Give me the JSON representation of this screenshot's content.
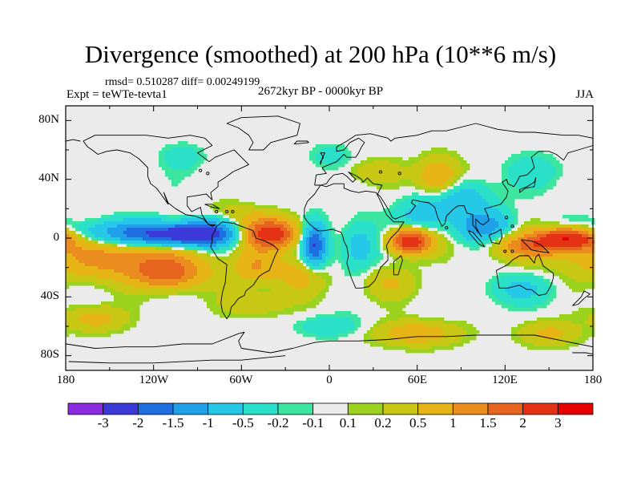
{
  "title": "Divergence (smoothed) at 200 hPa (10**6 m/s)",
  "stats": "rmsd= 0.510287 diff= 0.00249199",
  "experiment": "Expt = teWTe-tevta1",
  "period": "2672kyr BP - 0000kyr BP",
  "season": "JJA",
  "axes": {
    "lat_labels": [
      "80N",
      "40N",
      "0",
      "40S",
      "80S"
    ],
    "lat_values": [
      80,
      40,
      0,
      -40,
      -80
    ],
    "lon_labels": [
      "180",
      "120W",
      "60W",
      "0",
      "60E",
      "120E",
      "180"
    ],
    "lon_values": [
      -180,
      -120,
      -60,
      0,
      60,
      120,
      180
    ],
    "lat_range": [
      -90,
      90
    ],
    "lon_range": [
      -180,
      180
    ]
  },
  "colorbar": {
    "labels": [
      "-3",
      "-2",
      "-1.5",
      "-1",
      "-0.5",
      "-0.2",
      "-0.1",
      "0.1",
      "0.2",
      "0.5",
      "1",
      "1.5",
      "2",
      "3"
    ],
    "colors": [
      "#8a2be2",
      "#3b3ad9",
      "#1f6fe0",
      "#1fa0e8",
      "#25c8e6",
      "#2be0c8",
      "#3ce6a0",
      "#ebebeb",
      "#9ad21e",
      "#c8c814",
      "#e6b414",
      "#eb8c1e",
      "#e6641e",
      "#e33214",
      "#e60000"
    ]
  },
  "field_anomalies": [
    {
      "lon": -100,
      "lat": 2,
      "value": -2.6,
      "sx": 22,
      "sy": 6
    },
    {
      "lon": -150,
      "lat": 3,
      "value": -1.2,
      "sx": 30,
      "sy": 6
    },
    {
      "lon": -75,
      "lat": 8,
      "value": -0.8,
      "sx": 12,
      "sy": 8
    },
    {
      "lon": -40,
      "lat": 3,
      "value": 2.4,
      "sx": 14,
      "sy": 7
    },
    {
      "lon": -70,
      "lat": 15,
      "value": 0.7,
      "sx": 14,
      "sy": 6
    },
    {
      "lon": -140,
      "lat": -14,
      "value": 1.3,
      "sx": 38,
      "sy": 10
    },
    {
      "lon": -110,
      "lat": -25,
      "value": 1.4,
      "sx": 16,
      "sy": 7
    },
    {
      "lon": -10,
      "lat": -5,
      "value": -2.0,
      "sx": 6,
      "sy": 10
    },
    {
      "lon": 20,
      "lat": -5,
      "value": -0.9,
      "sx": 9,
      "sy": 12
    },
    {
      "lon": 55,
      "lat": -2,
      "value": 2.8,
      "sx": 10,
      "sy": 6
    },
    {
      "lon": 65,
      "lat": 15,
      "value": -0.8,
      "sx": 12,
      "sy": 10
    },
    {
      "lon": 75,
      "lat": 40,
      "value": 1.1,
      "sx": 10,
      "sy": 10
    },
    {
      "lon": 90,
      "lat": 28,
      "value": -0.9,
      "sx": 14,
      "sy": 8
    },
    {
      "lon": 105,
      "lat": 8,
      "value": -1.2,
      "sx": 14,
      "sy": 8
    },
    {
      "lon": 165,
      "lat": 0,
      "value": 2.8,
      "sx": 14,
      "sy": 5
    },
    {
      "lon": 140,
      "lat": -5,
      "value": 1.4,
      "sx": 22,
      "sy": 6
    },
    {
      "lon": -20,
      "lat": -25,
      "value": 0.7,
      "sx": 12,
      "sy": 9
    },
    {
      "lon": -50,
      "lat": -20,
      "value": 0.9,
      "sx": 10,
      "sy": 8
    },
    {
      "lon": 40,
      "lat": -30,
      "value": 0.5,
      "sx": 14,
      "sy": 8
    },
    {
      "lon": 130,
      "lat": -35,
      "value": -0.6,
      "sx": 16,
      "sy": 7
    },
    {
      "lon": 30,
      "lat": 45,
      "value": 0.4,
      "sx": 14,
      "sy": 6
    },
    {
      "lon": -100,
      "lat": 55,
      "value": -0.4,
      "sx": 10,
      "sy": 6
    },
    {
      "lon": 0,
      "lat": 55,
      "value": -0.35,
      "sx": 10,
      "sy": 6
    },
    {
      "lon": 140,
      "lat": 45,
      "value": -0.4,
      "sx": 14,
      "sy": 8
    },
    {
      "lon": -160,
      "lat": -55,
      "value": 0.7,
      "sx": 14,
      "sy": 6
    },
    {
      "lon": 60,
      "lat": -65,
      "value": 0.8,
      "sx": 20,
      "sy": 6
    },
    {
      "lon": 150,
      "lat": -65,
      "value": 0.6,
      "sx": 14,
      "sy": 6
    },
    {
      "lon": 0,
      "lat": -60,
      "value": -0.5,
      "sx": 14,
      "sy": 5
    },
    {
      "lon": -50,
      "lat": -45,
      "value": 0.45,
      "sx": 16,
      "sy": 6
    }
  ]
}
